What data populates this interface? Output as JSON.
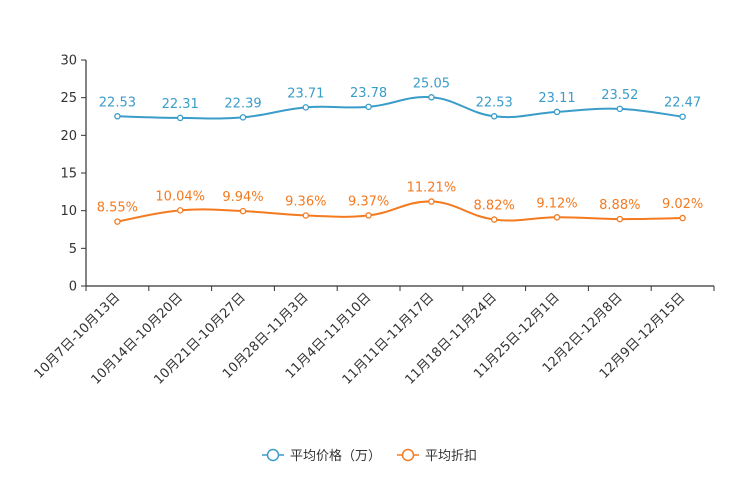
{
  "chart_data": {
    "type": "line",
    "categories": [
      "10月7日-10月13日",
      "10月14日-10月20日",
      "10月21日-10月27日",
      "10月28日-11月3日",
      "11月4日-11月10日",
      "11月11日-11月17日",
      "11月18日-11月24日",
      "11月25日-12月1日",
      "12月2日-12月8日",
      "12月9日-12月15日"
    ],
    "series": [
      {
        "name": "平均价格（万）",
        "color": "#3a9cc9",
        "values": [
          22.53,
          22.31,
          22.39,
          23.71,
          23.78,
          25.05,
          22.53,
          23.11,
          23.52,
          22.47
        ],
        "labels": [
          "22.53",
          "22.31",
          "22.39",
          "23.71",
          "23.78",
          "25.05",
          "22.53",
          "23.11",
          "23.52",
          "22.47"
        ]
      },
      {
        "name": "平均折扣",
        "color": "#f47a20",
        "values": [
          8.55,
          10.04,
          9.94,
          9.36,
          9.37,
          11.21,
          8.82,
          9.12,
          8.88,
          9.02
        ],
        "labels": [
          "8.55%",
          "10.04%",
          "9.94%",
          "9.36%",
          "9.37%",
          "11.21%",
          "8.82%",
          "9.12%",
          "8.88%",
          "9.02%"
        ]
      }
    ],
    "yticks": [
      "0",
      "5",
      "10",
      "15",
      "20",
      "25",
      "30"
    ],
    "ylim": [
      0,
      30
    ],
    "xlabel": "",
    "ylabel": "",
    "legend_position": "bottom-center"
  }
}
